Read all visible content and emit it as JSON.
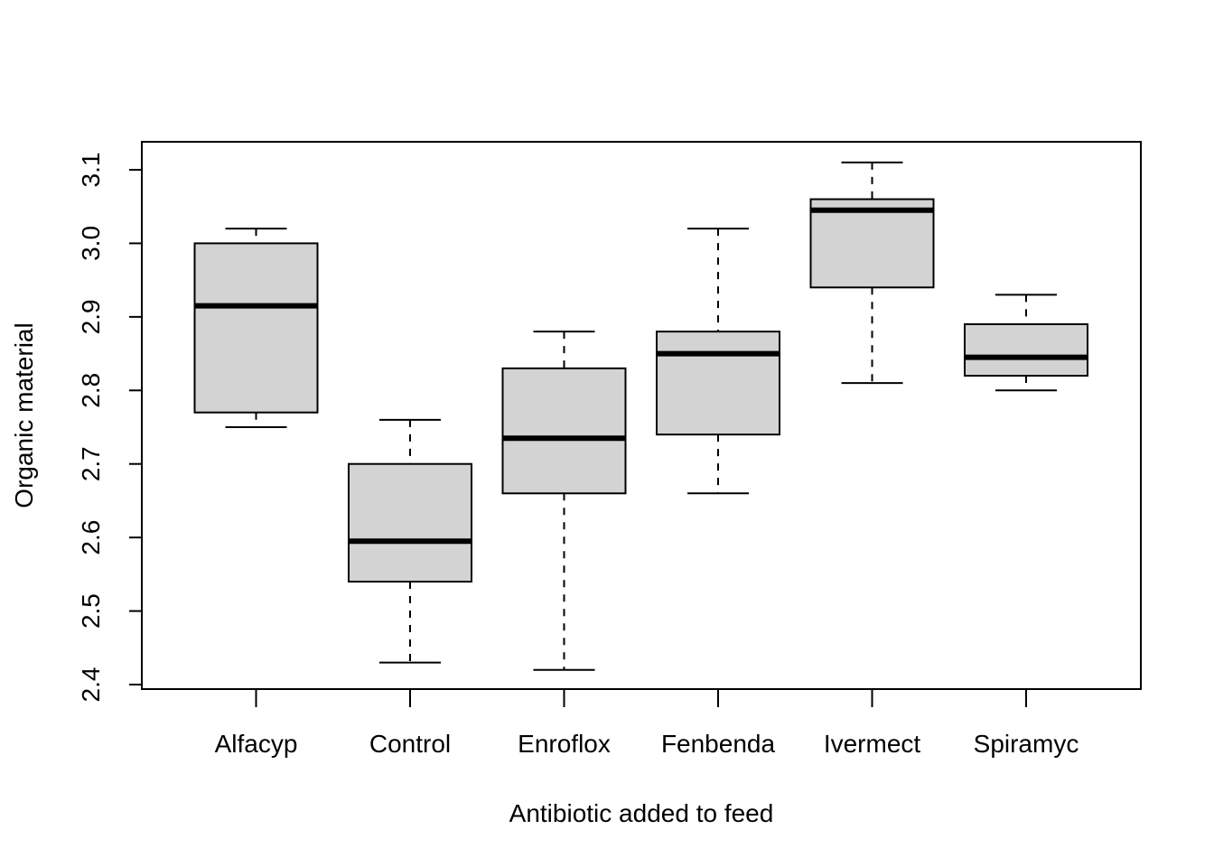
{
  "chart_data": {
    "type": "boxplot",
    "title": "",
    "xlabel": "Antibiotic added to feed",
    "ylabel": "Organic material",
    "ylim": [
      2.4,
      3.1
    ],
    "yticks": [
      "2.4",
      "2.5",
      "2.6",
      "2.7",
      "2.8",
      "2.9",
      "3.0",
      "3.1"
    ],
    "ytick_values": [
      2.4,
      2.5,
      2.6,
      2.7,
      2.8,
      2.9,
      3.0,
      3.1
    ],
    "categories": [
      "Alfacyp",
      "Control",
      "Enroflox",
      "Fenbenda",
      "Ivermect",
      "Spiramyc"
    ],
    "series": [
      {
        "name": "Alfacyp",
        "min": 2.75,
        "q1": 2.77,
        "median": 2.915,
        "q3": 3.0,
        "max": 3.02
      },
      {
        "name": "Control",
        "min": 2.43,
        "q1": 2.54,
        "median": 2.595,
        "q3": 2.7,
        "max": 2.76
      },
      {
        "name": "Enroflox",
        "min": 2.42,
        "q1": 2.66,
        "median": 2.735,
        "q3": 2.83,
        "max": 2.88
      },
      {
        "name": "Fenbenda",
        "min": 2.66,
        "q1": 2.74,
        "median": 2.85,
        "q3": 2.88,
        "max": 3.02
      },
      {
        "name": "Ivermect",
        "min": 2.81,
        "q1": 2.94,
        "median": 3.045,
        "q3": 3.06,
        "max": 3.11
      },
      {
        "name": "Spiramyc",
        "min": 2.8,
        "q1": 2.82,
        "median": 2.845,
        "q3": 2.89,
        "max": 2.93
      }
    ],
    "box_fill": "#d3d3d3",
    "grid": false,
    "legend": "none"
  }
}
